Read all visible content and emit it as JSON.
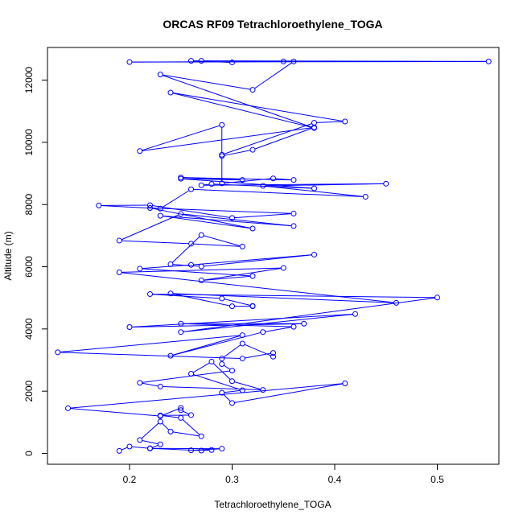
{
  "chart_data": {
    "type": "line",
    "title": "ORCAS RF09 Tetrachloroethylene_TOGA",
    "xlabel": "Tetrachloroethylene_TOGA",
    "ylabel": "Altitude (m)",
    "xlim": [
      0.12,
      0.56
    ],
    "ylim": [
      -350,
      13050
    ],
    "xticks": [
      "0.2",
      "0.3",
      "0.4",
      "0.5"
    ],
    "yticks": [
      "0",
      "2000",
      "4000",
      "6000",
      "8000",
      "10000",
      "12000"
    ],
    "grid": false,
    "series_color": "#0000ff",
    "x": [
      0.19,
      0.2,
      0.22,
      0.27,
      0.28,
      0.26,
      0.29,
      0.22,
      0.22,
      0.23,
      0.21,
      0.23,
      0.24,
      0.27,
      0.25,
      0.23,
      0.26,
      0.25,
      0.25,
      0.23,
      0.14,
      0.41,
      0.3,
      0.29,
      0.31,
      0.26,
      0.28,
      0.3,
      0.33,
      0.23,
      0.21,
      0.3,
      0.29,
      0.29,
      0.31,
      0.34,
      0.34,
      0.31,
      0.13,
      0.31,
      0.24,
      0.33,
      0.36,
      0.25,
      0.37,
      0.2,
      0.42,
      0.25,
      0.5,
      0.22,
      0.29,
      0.32,
      0.32,
      0.3,
      0.24,
      0.46,
      0.19,
      0.35,
      0.27,
      0.32,
      0.21,
      0.26,
      0.38,
      0.27,
      0.24,
      0.27,
      0.31,
      0.26,
      0.19,
      0.25,
      0.36,
      0.23,
      0.32,
      0.22,
      0.36,
      0.3,
      0.22,
      0.17,
      0.23,
      0.26,
      0.43,
      0.33,
      0.45,
      0.27,
      0.28,
      0.38,
      0.25,
      0.31,
      0.25,
      0.36,
      0.34,
      0.29,
      0.29,
      0.32,
      0.38,
      0.21,
      0.29,
      0.29,
      0.38,
      0.41,
      0.24,
      0.38,
      0.23,
      0.32,
      0.36,
      0.35,
      0.2,
      0.55,
      0.27,
      0.26,
      0.3
    ],
    "y": [
      80,
      220,
      160,
      90,
      110,
      100,
      150,
      160,
      160,
      290,
      430,
      1020,
      700,
      550,
      1140,
      1220,
      1230,
      1390,
      1460,
      1200,
      1450,
      2250,
      1620,
      1950,
      2030,
      2560,
      2950,
      2320,
      2040,
      2150,
      2270,
      2660,
      2870,
      3050,
      3530,
      3110,
      3230,
      3050,
      3250,
      3800,
      3140,
      3900,
      4070,
      4170,
      4170,
      4060,
      4480,
      3900,
      5010,
      5120,
      4980,
      4740,
      4730,
      4730,
      5140,
      4840,
      5820,
      5960,
      5560,
      5700,
      5940,
      6060,
      6390,
      6010,
      6080,
      7020,
      6650,
      6740,
      6840,
      7700,
      7310,
      7640,
      7230,
      7890,
      7710,
      7570,
      7980,
      7970,
      7870,
      8490,
      8250,
      8600,
      8670,
      8620,
      8660,
      8520,
      8830,
      8790,
      8870,
      8790,
      8840,
      8680,
      9560,
      9760,
      10480,
      9720,
      10560,
      9600,
      10630,
      10670,
      11600,
      10460,
      12180,
      11690,
      12600,
      12600,
      12580,
      12600,
      12620,
      12620,
      12570
    ]
  }
}
